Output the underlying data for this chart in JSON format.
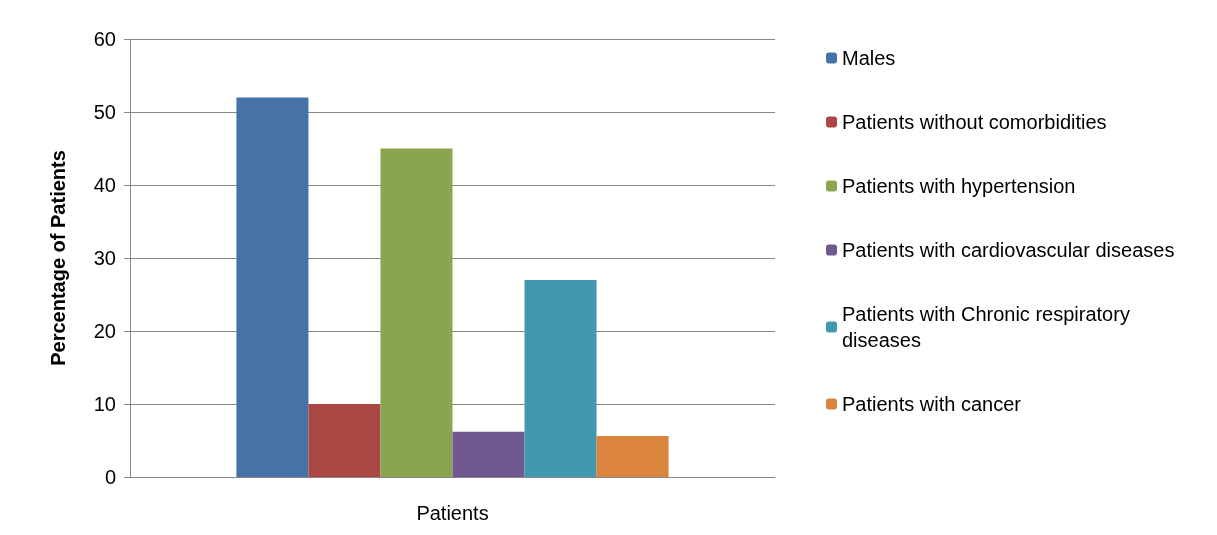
{
  "chart_data": {
    "type": "bar",
    "ylabel": "Percentage of Patients",
    "categories": [
      "Patients"
    ],
    "series": [
      {
        "name": "Males",
        "color": "#4572a7",
        "values": [
          52
        ]
      },
      {
        "name": "Patients without comorbidities",
        "color": "#aa4643",
        "values": [
          10
        ]
      },
      {
        "name": "Patients with hypertension",
        "color": "#89a54e",
        "values": [
          45
        ]
      },
      {
        "name": "Patients with cardiovascular diseases",
        "color": "#71588f",
        "values": [
          6.2
        ]
      },
      {
        "name": "Patients with Chronic respiratory diseases",
        "color": "#4198af",
        "values": [
          27
        ]
      },
      {
        "name": "Patients with cancer",
        "color": "#db843d",
        "values": [
          5.6
        ]
      }
    ],
    "ylim": [
      0,
      60
    ],
    "yticks": [
      0,
      10,
      20,
      30,
      40,
      50,
      60
    ],
    "grid": "y",
    "legend": "right"
  }
}
